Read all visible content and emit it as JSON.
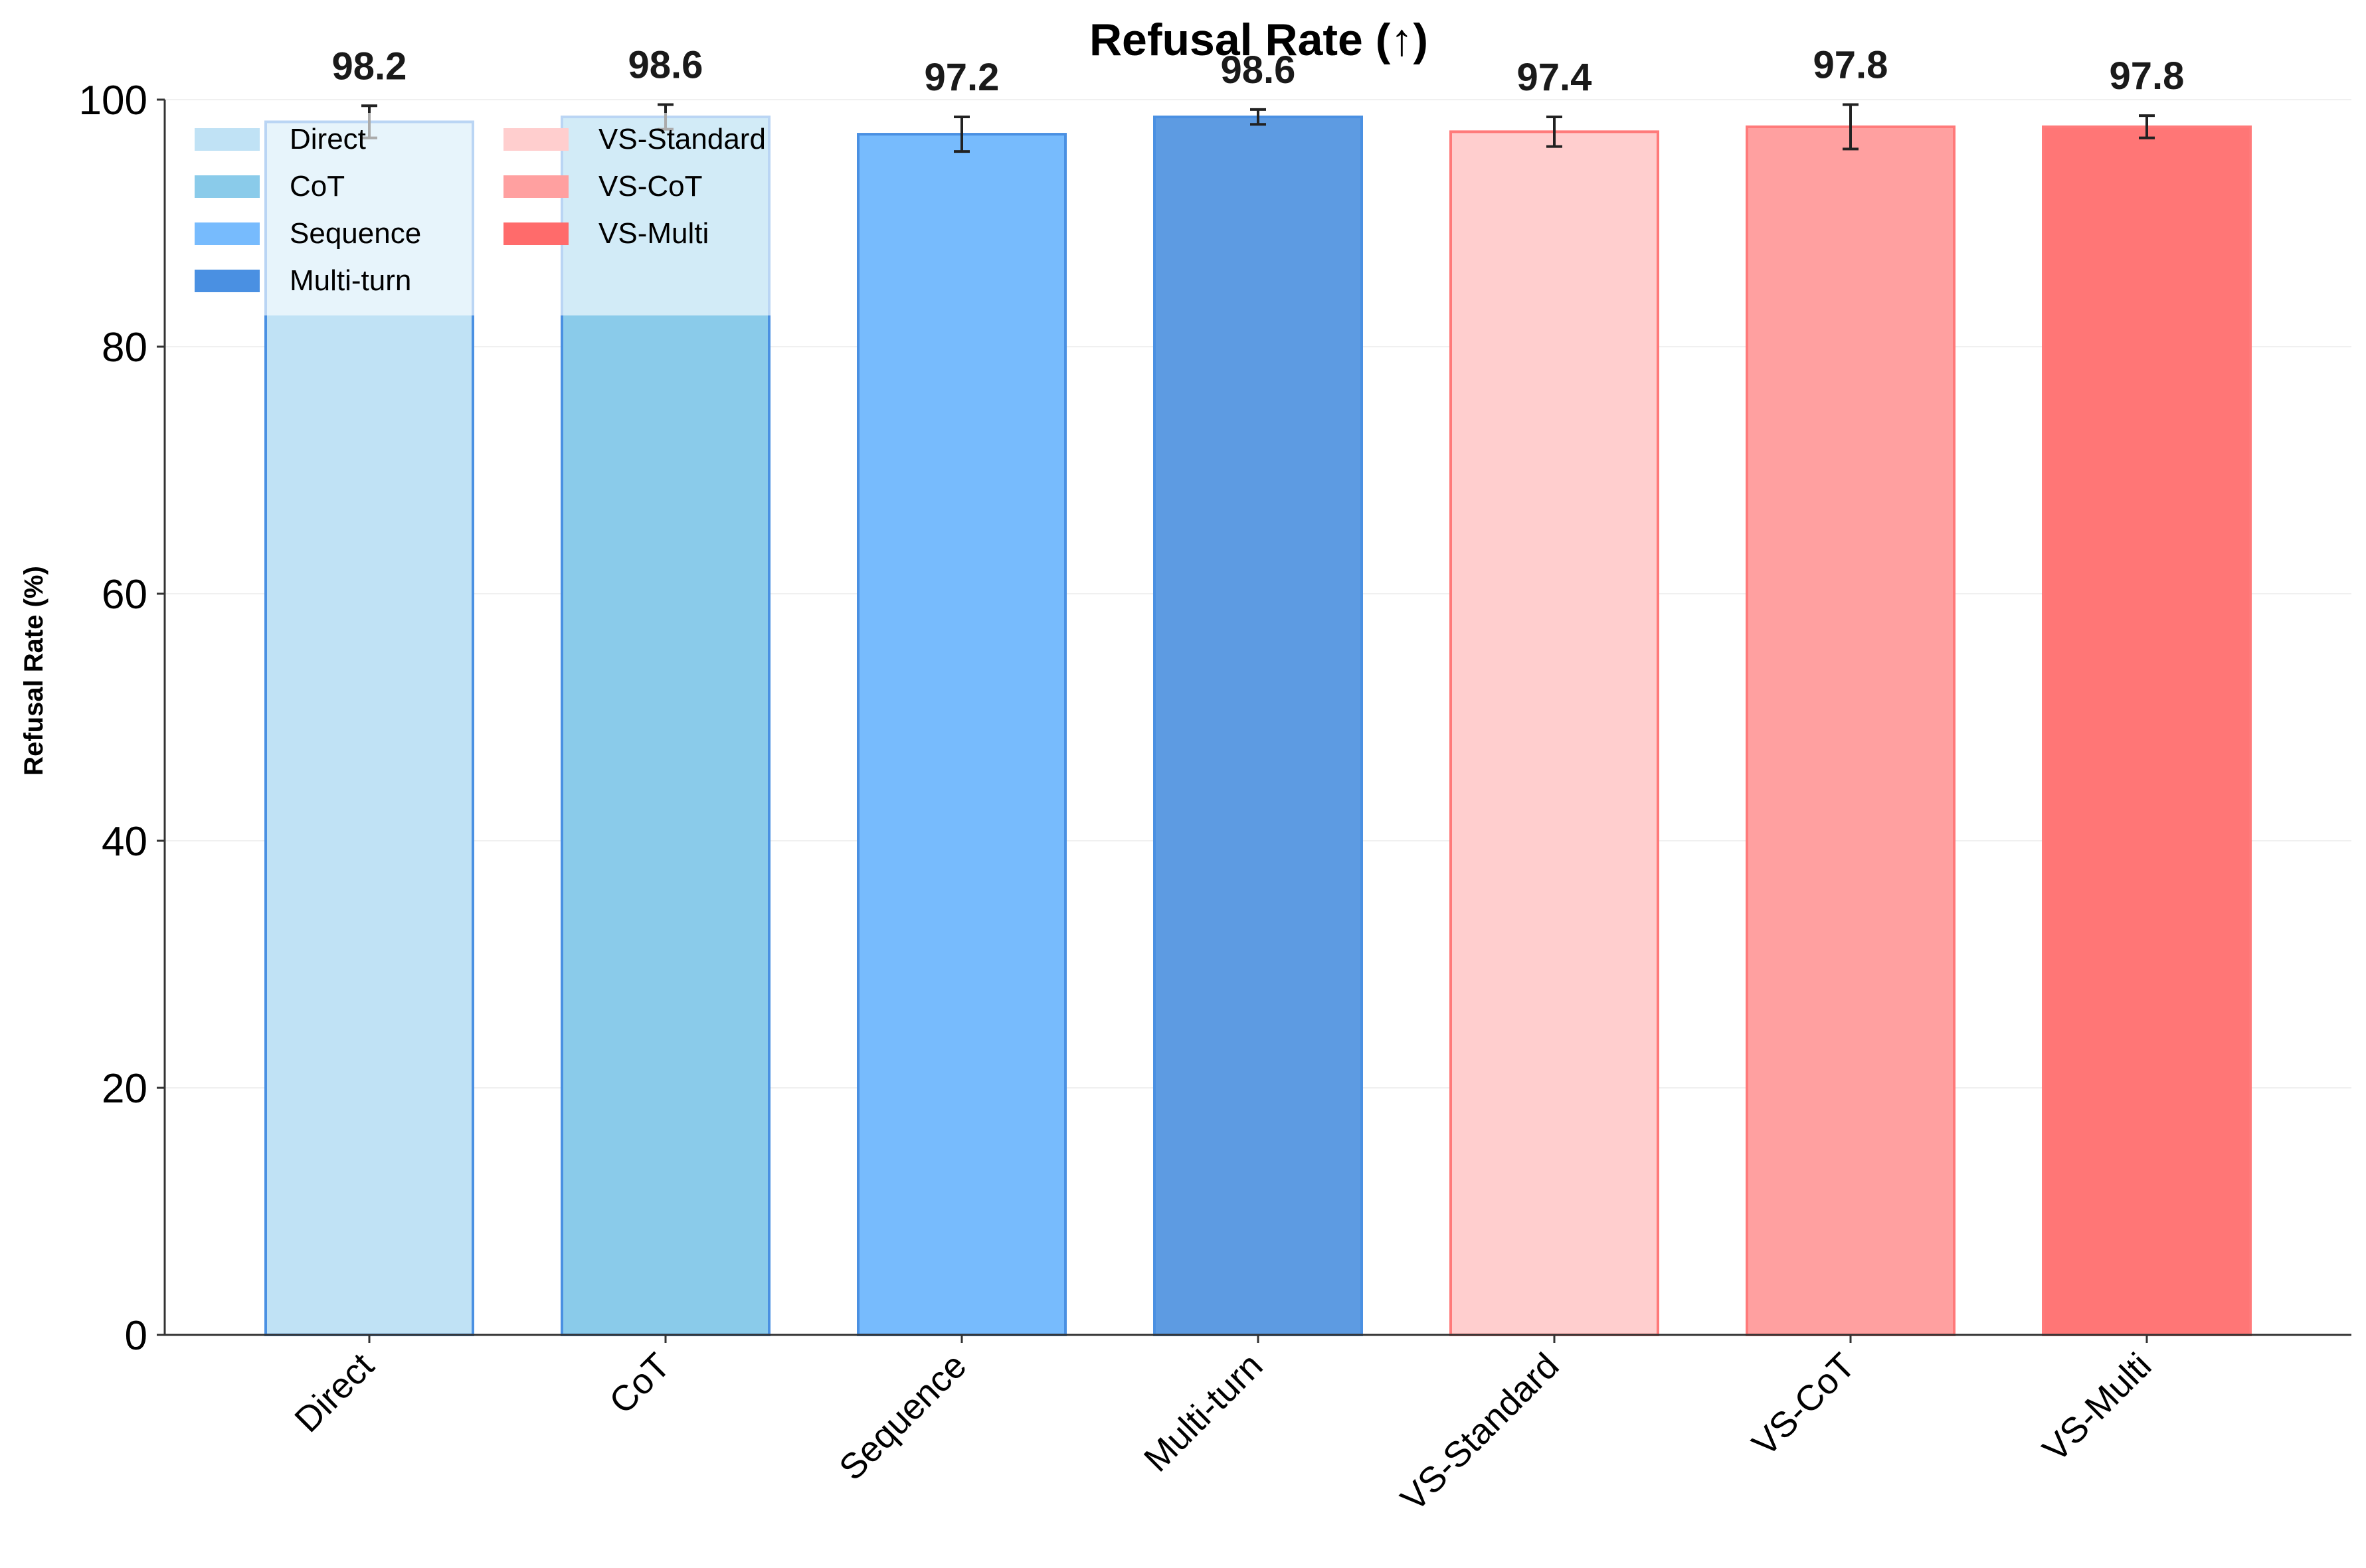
{
  "chart_data": {
    "type": "bar",
    "title": "Refusal Rate (↑)",
    "xlabel": "",
    "ylabel": "Refusal Rate (%)",
    "ylim": [
      0,
      100
    ],
    "yticks": [
      0,
      20,
      40,
      60,
      80,
      100
    ],
    "grid": "horizontal, faint",
    "categories": [
      "Direct",
      "CoT",
      "Sequence",
      "Multi-turn",
      "VS-Standard",
      "VS-CoT",
      "VS-Multi"
    ],
    "values": [
      98.2,
      98.6,
      97.2,
      98.6,
      97.4,
      97.8,
      97.8
    ],
    "value_labels": [
      "98.2",
      "98.6",
      "97.2",
      "98.6",
      "97.4",
      "97.8",
      "97.8"
    ],
    "errors": [
      1.3,
      1.0,
      1.4,
      0.6,
      1.2,
      1.8,
      0.9
    ],
    "colors": [
      "#c0e2f5",
      "#8acbea",
      "#77bbfd",
      "#5d9be2",
      "#ffcece",
      "#ffa0a0",
      "#ff7676"
    ],
    "edge_colors": [
      "#4a90e2",
      "#4a90e2",
      "#4a90e2",
      "#4a90e2",
      "#ff7a7a",
      "#ff7a7a",
      "#ff7a7a"
    ],
    "legend": {
      "placement": "upper-left, two columns",
      "entries": [
        {
          "label": "Direct",
          "color": "#c0e2f5"
        },
        {
          "label": "CoT",
          "color": "#8acbea"
        },
        {
          "label": "Sequence",
          "color": "#77bbfd"
        },
        {
          "label": "Multi-turn",
          "color": "#4a90e2"
        },
        {
          "label": "VS-Standard",
          "color": "#ffcece"
        },
        {
          "label": "VS-CoT",
          "color": "#ffa0a0"
        },
        {
          "label": "VS-Multi",
          "color": "#ff6b6b"
        }
      ]
    }
  }
}
